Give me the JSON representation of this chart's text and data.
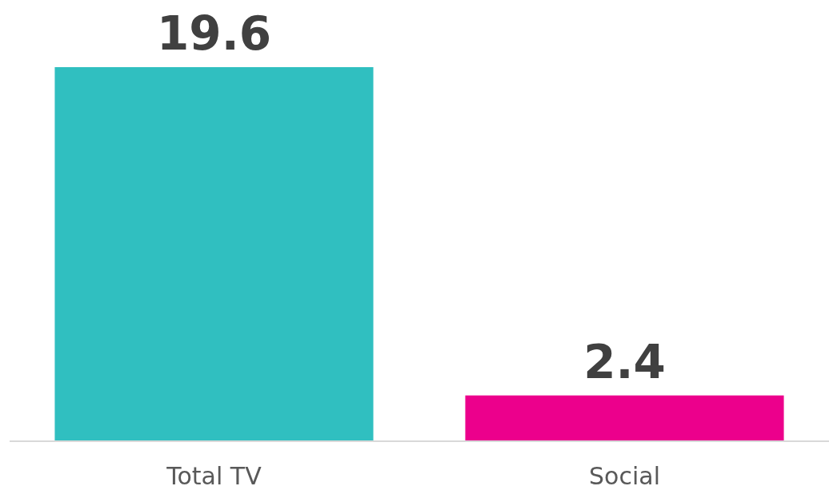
{
  "chart_data": {
    "type": "bar",
    "categories": [
      "Total TV",
      "Social"
    ],
    "values": [
      19.6,
      2.4
    ],
    "colors": [
      "#30bfc0",
      "#ec008c"
    ],
    "data_labels": true
  }
}
